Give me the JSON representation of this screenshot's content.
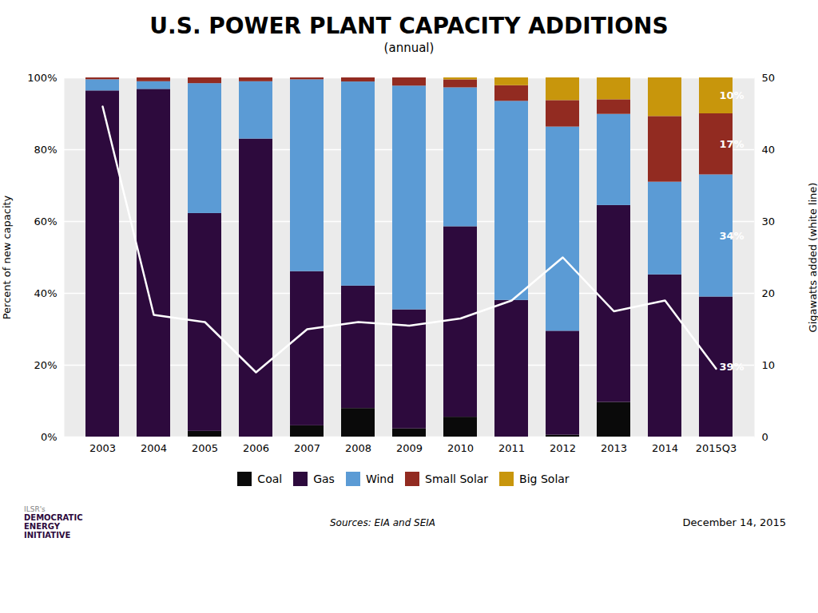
{
  "chart_data": {
    "type": "bar",
    "stacked": true,
    "title": "U.S. POWER PLANT CAPACITY ADDITIONS",
    "subtitle": "(annual)",
    "y_label": "Percent of new capacity",
    "y2_label": "Gigawatts added (white line)",
    "categories": [
      "2003",
      "2004",
      "2005",
      "2006",
      "2007",
      "2008",
      "2009",
      "2010",
      "2011",
      "2012",
      "2013",
      "2014",
      "2015Q3"
    ],
    "series": [
      {
        "name": "Coal",
        "color": "#0a0a0a",
        "values": [
          0,
          0,
          1.5957,
          0,
          3.1414,
          7.9545,
          2.2857,
          5.5249,
          0,
          0.5263,
          9.6447,
          0,
          0
        ]
      },
      {
        "name": "Gas",
        "color": "#2d0a3d",
        "values": [
          96.3731,
          96.8085,
          60.6383,
          82.9787,
          42.9319,
          34.0909,
          33.1429,
          53.0387,
          38.0435,
          28.9474,
          54.8223,
          45.16129,
          39
        ],
        "value_labels": [
          null,
          null,
          null,
          null,
          null,
          null,
          null,
          null,
          null,
          null,
          null,
          null,
          "39%"
        ]
      },
      {
        "name": "Wind",
        "color": "#5b9bd5",
        "values": [
          3.1088,
          2.1277,
          36.1702,
          15.9574,
          53.4031,
          56.8182,
          62.2857,
          38.674,
          55.4348,
          56.8421,
          25.3807,
          25.80645,
          34
        ],
        "value_labels": [
          null,
          null,
          null,
          null,
          null,
          null,
          null,
          null,
          null,
          null,
          null,
          null,
          "34%"
        ]
      },
      {
        "name": "Small Solar",
        "color": "#922b21",
        "values": [
          0.5181,
          1.0638,
          1.5957,
          1.0638,
          0.5236,
          1.1364,
          2.2857,
          2.2099,
          4.3478,
          7.3684,
          4.0609,
          18.27957,
          17
        ],
        "value_labels": [
          null,
          null,
          null,
          null,
          null,
          null,
          null,
          null,
          null,
          null,
          null,
          null,
          "17%"
        ]
      },
      {
        "name": "Big Solar",
        "color": "#c8960c",
        "values": [
          0,
          0,
          0,
          0,
          0,
          0,
          0,
          0.5525,
          2.1739,
          6.3158,
          6.0914,
          10.75269,
          10
        ],
        "value_labels": [
          null,
          null,
          null,
          null,
          null,
          null,
          null,
          null,
          null,
          null,
          null,
          null,
          "10%"
        ]
      },
      {
        "type": "line",
        "axis": "y2",
        "color": "white",
        "values": [
          46.0,
          17.0,
          16.0,
          9.0,
          15.0,
          16.0,
          15.5,
          16.5,
          19.0,
          25.0,
          17.5,
          19.0,
          9.5
        ]
      }
    ],
    "ylim": [
      0,
      100
    ],
    "yticks": [
      {
        "value": 0,
        "label": "0%"
      },
      {
        "value": 20,
        "label": "20%"
      },
      {
        "value": 40,
        "label": "40%"
      },
      {
        "value": 60,
        "label": "60%"
      },
      {
        "value": 80,
        "label": "80%"
      },
      {
        "value": 100,
        "label": "100%"
      }
    ],
    "y2lim": [
      0,
      50
    ],
    "y2ticks": [
      0,
      10,
      20,
      30,
      40,
      50
    ],
    "grid": true,
    "legend": "bottom",
    "annotations": [
      "Sources: EIA and SEIA",
      "December 14, 2015",
      "ILSR's",
      "DEMOCRATIC\nENERGY\nINITIATIVE"
    ]
  }
}
